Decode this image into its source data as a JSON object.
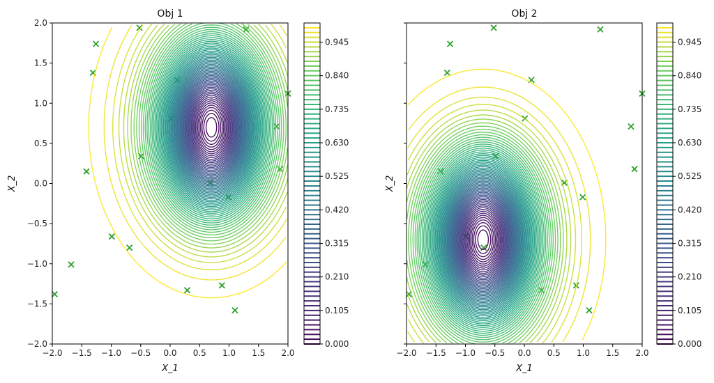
{
  "chart_data": [
    {
      "type": "contour",
      "title": "Obj 1",
      "xlabel": "X_1",
      "ylabel": "X_2",
      "xlim": [
        -2,
        2
      ],
      "ylim": [
        -2,
        2
      ],
      "xticks": [
        "−2.0",
        "−1.5",
        "−1.0",
        "−0.5",
        "0.0",
        "0.5",
        "1.0",
        "1.5",
        "2.0"
      ],
      "yticks": [
        "−2.0",
        "−1.5",
        "−1.0",
        "−0.5",
        "0.0",
        "0.5",
        "1.0",
        "1.5",
        "2.0"
      ],
      "show_ytick_labels": true,
      "minimum": [
        0.7,
        0.7
      ],
      "colormap": "viridis",
      "level_step": 0.015,
      "level_range": [
        0,
        0.99
      ],
      "colorbar_ticks": [
        "0.000",
        "0.105",
        "0.210",
        "0.315",
        "0.420",
        "0.525",
        "0.630",
        "0.735",
        "0.840",
        "0.945"
      ]
    },
    {
      "type": "contour",
      "title": "Obj 2",
      "xlabel": "X_1",
      "ylabel": "X_2",
      "xlim": [
        -2,
        2
      ],
      "ylim": [
        -2,
        2
      ],
      "xticks": [
        "−2.0",
        "−1.5",
        "−1.0",
        "−0.5",
        "0.0",
        "0.5",
        "1.0",
        "1.5",
        "2.0"
      ],
      "yticks": [
        "−2.0",
        "−1.5",
        "−1.0",
        "−0.5",
        "0.0",
        "0.5",
        "1.0",
        "1.5",
        "2.0"
      ],
      "show_ytick_labels": false,
      "minimum": [
        -0.7,
        -0.7
      ],
      "colormap": "viridis",
      "level_step": 0.015,
      "level_range": [
        0,
        0.99
      ],
      "colorbar_ticks": [
        "0.000",
        "0.105",
        "0.210",
        "0.315",
        "0.420",
        "0.525",
        "0.630",
        "0.735",
        "0.840",
        "0.945"
      ]
    }
  ],
  "scatter": {
    "marker": "x",
    "color": "#2ca02c",
    "points": [
      [
        -1.26,
        1.74
      ],
      [
        -0.52,
        1.94
      ],
      [
        1.29,
        1.92
      ],
      [
        -1.31,
        1.38
      ],
      [
        0.12,
        1.29
      ],
      [
        2.0,
        1.12
      ],
      [
        0.01,
        0.81
      ],
      [
        1.81,
        0.71
      ],
      [
        1.87,
        0.18
      ],
      [
        -1.42,
        0.15
      ],
      [
        -0.49,
        0.34
      ],
      [
        0.68,
        0.01
      ],
      [
        0.99,
        -0.17
      ],
      [
        -0.99,
        -0.66
      ],
      [
        -0.69,
        -0.8
      ],
      [
        -1.68,
        -1.01
      ],
      [
        -1.96,
        -1.38
      ],
      [
        0.29,
        -1.33
      ],
      [
        0.88,
        -1.27
      ],
      [
        1.1,
        -1.58
      ]
    ]
  }
}
